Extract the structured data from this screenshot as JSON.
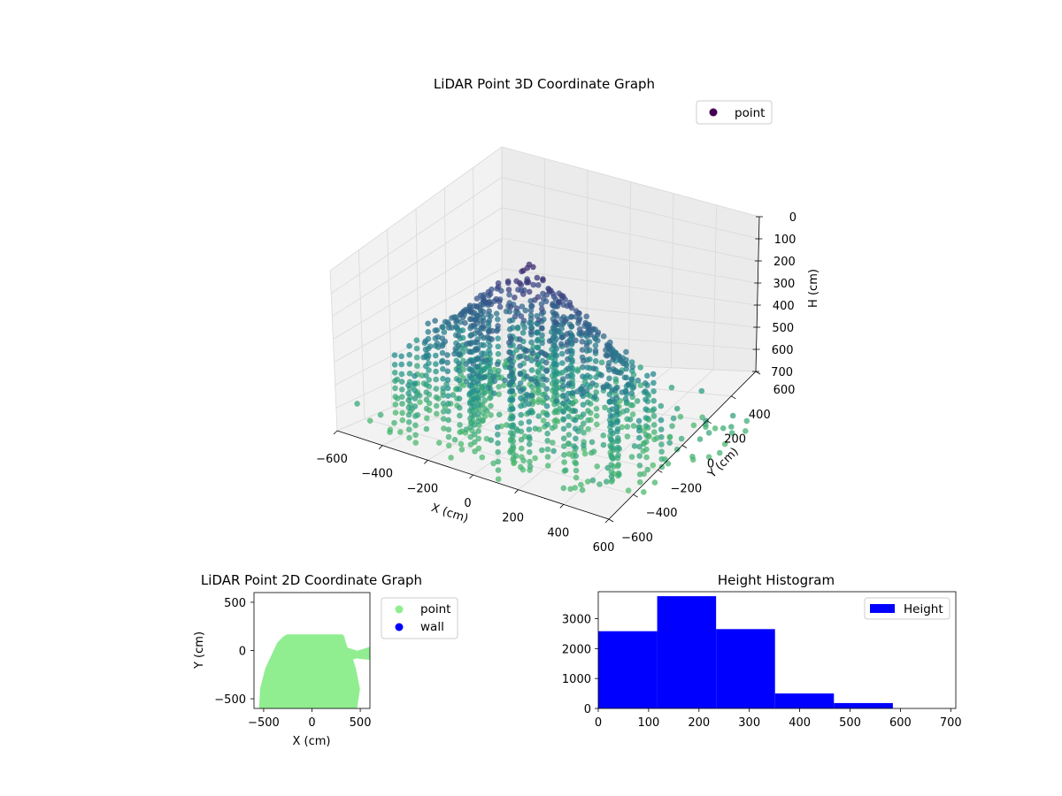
{
  "chart_data": [
    {
      "type": "scatter3d",
      "title": "LiDAR Point 3D Coordinate Graph",
      "xlabel": "X (cm)",
      "ylabel": "Y (cm)",
      "zlabel": "H (cm)",
      "xlim": [
        -600,
        600
      ],
      "ylim": [
        -600,
        600
      ],
      "zlim": [
        0,
        700
      ],
      "z_inverted": true,
      "x_ticks": [
        "−600",
        "−400",
        "−200",
        "0",
        "200",
        "400",
        "600"
      ],
      "y_ticks": [
        "−600",
        "−400",
        "−200",
        "0",
        "200",
        "400",
        "600"
      ],
      "z_ticks": [
        "0",
        "100",
        "200",
        "300",
        "400",
        "500",
        "600",
        "700"
      ],
      "colormap": "viridis",
      "colormap_stops": [
        "#440154",
        "#3b528b",
        "#21918c",
        "#5ec962"
      ],
      "legend": {
        "entries": [
          {
            "name": "point",
            "color": "#440154"
          }
        ],
        "placement": "top-right"
      },
      "grid": true,
      "point_cloud_description": "dome-shaped cloud of vertical scan columns forming a shell; higher points darker purple, lower points teal"
    },
    {
      "type": "scatter",
      "title": "LiDAR Point 2D Coordinate Graph",
      "xlabel": "X (cm)",
      "ylabel": "Y (cm)",
      "xlim": [
        -600,
        600
      ],
      "ylim": [
        -600,
        600
      ],
      "x_ticks": [
        "−500",
        "0",
        "500"
      ],
      "y_ticks": [
        "−500",
        "0",
        "500"
      ],
      "series": [
        {
          "name": "point",
          "color": "#90ee90",
          "outline": [
            [
              -510,
              -600
            ],
            [
              -500,
              -400
            ],
            [
              -450,
              -200
            ],
            [
              -380,
              -50
            ],
            [
              -330,
              60
            ],
            [
              -280,
              110
            ],
            [
              -250,
              130
            ],
            [
              300,
              130
            ],
            [
              320,
              60
            ],
            [
              340,
              0
            ],
            [
              500,
              -50
            ],
            [
              600,
              -60
            ],
            [
              600,
              0
            ],
            [
              380,
              -70
            ],
            [
              420,
              -200
            ],
            [
              460,
              -400
            ],
            [
              430,
              -600
            ]
          ]
        },
        {
          "name": "wall",
          "color": "#0000ff",
          "points": []
        }
      ],
      "legend": {
        "placement": "outside-right"
      }
    },
    {
      "type": "histogram",
      "title": "Height Histogram",
      "series": [
        {
          "name": "Height",
          "color": "#0000ff"
        }
      ],
      "bins": [
        0,
        117,
        234,
        351,
        468,
        585,
        702
      ],
      "values": [
        2580,
        3750,
        2650,
        500,
        180,
        0
      ],
      "xlim": [
        0,
        710
      ],
      "ylim": [
        0,
        3900
      ],
      "x_ticks": [
        "0",
        "100",
        "200",
        "300",
        "400",
        "500",
        "600",
        "700"
      ],
      "y_ticks": [
        "0",
        "1000",
        "2000",
        "3000"
      ],
      "legend": {
        "placement": "top-right"
      }
    }
  ]
}
